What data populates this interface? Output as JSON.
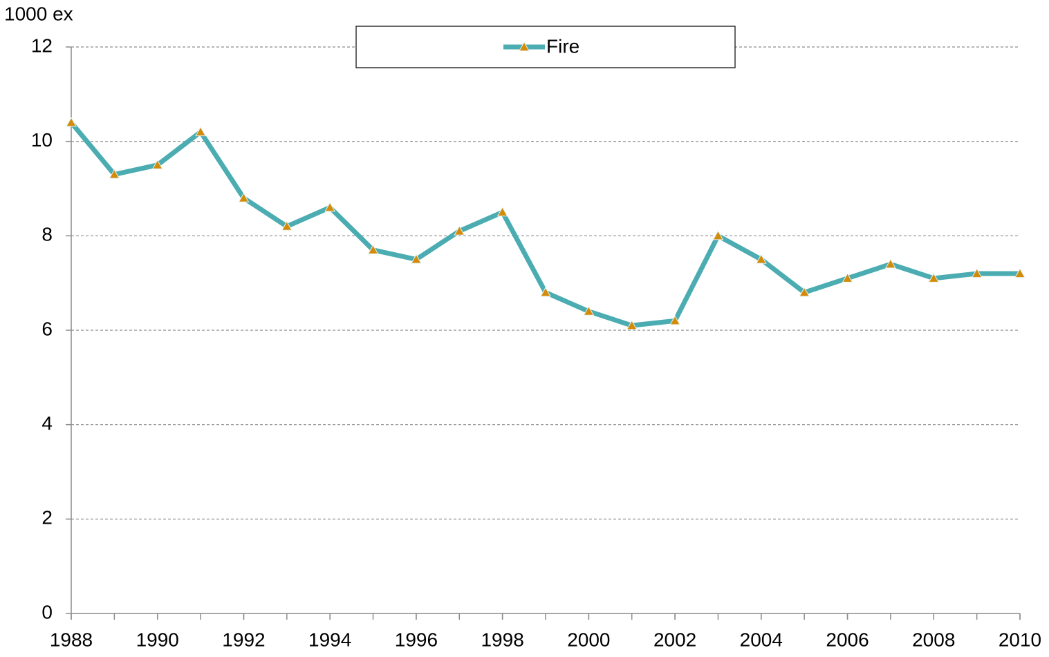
{
  "chart_data": {
    "type": "line",
    "y_label": "1000 ex",
    "x": [
      1988,
      1989,
      1990,
      1991,
      1992,
      1993,
      1994,
      1995,
      1996,
      1997,
      1998,
      1999,
      2000,
      2001,
      2002,
      2003,
      2004,
      2005,
      2006,
      2007,
      2008,
      2009,
      2010
    ],
    "series": [
      {
        "name": "Fire",
        "color": "#4bacb1",
        "marker_color": "#d38c0a",
        "values": [
          10.4,
          9.3,
          9.5,
          10.2,
          8.8,
          8.2,
          8.6,
          7.7,
          7.5,
          8.1,
          8.5,
          6.8,
          6.4,
          6.1,
          6.2,
          8.0,
          7.5,
          6.8,
          7.1,
          7.4,
          7.1,
          7.2,
          7.2
        ]
      }
    ],
    "xlim": [
      1988,
      2010
    ],
    "xticks": [
      1988,
      1990,
      1992,
      1994,
      1996,
      1998,
      2000,
      2002,
      2004,
      2006,
      2008,
      2010
    ],
    "ylim": [
      0,
      12
    ],
    "yticks": [
      0,
      2,
      4,
      6,
      8,
      10,
      12
    ],
    "grid": true,
    "legend": "top"
  }
}
